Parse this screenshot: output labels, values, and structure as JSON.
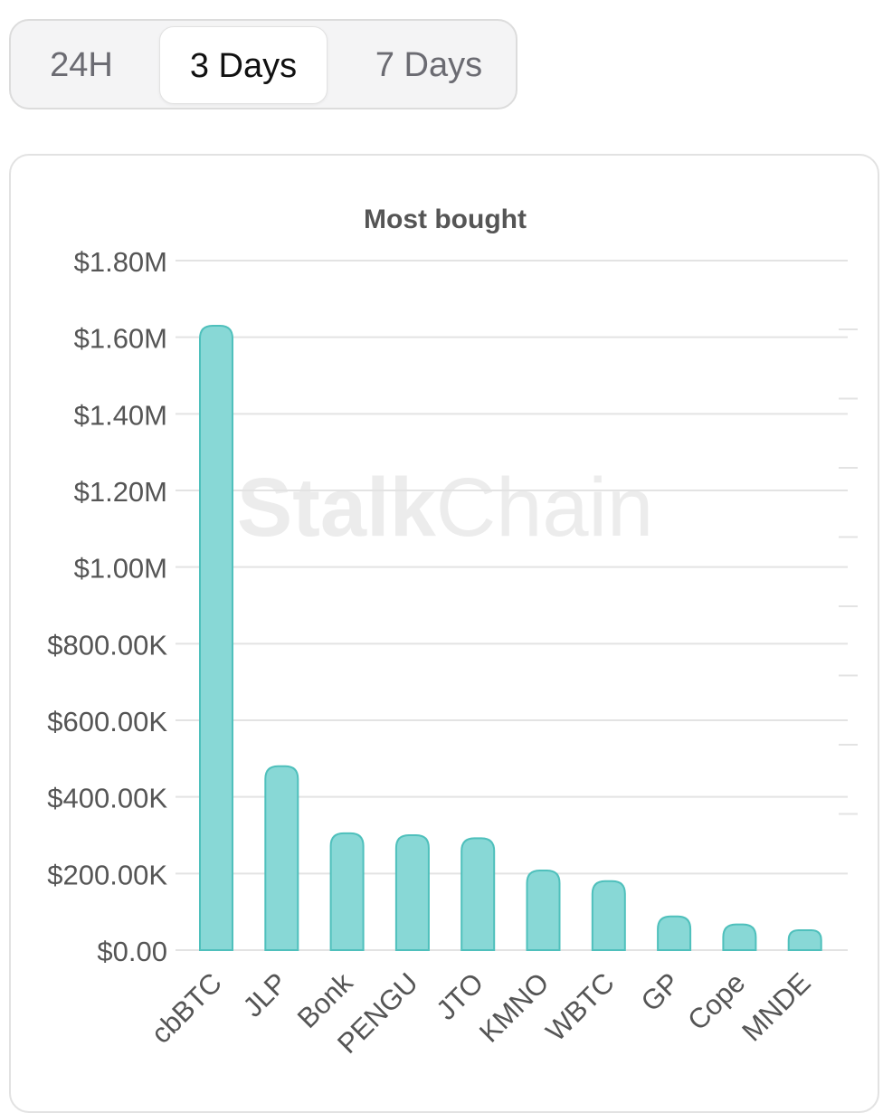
{
  "tabs": [
    {
      "label": "24H",
      "active": false
    },
    {
      "label": "3 Days",
      "active": true
    },
    {
      "label": "7 Days",
      "active": false
    }
  ],
  "watermark": {
    "bold": "Stalk",
    "light": "Chain"
  },
  "colors": {
    "bar_fill": "#88d8d6",
    "bar_stroke": "#4fc0bc",
    "grid": "#e3e3e3",
    "tick_text": "#555555",
    "title_text": "#555555",
    "watermark": "#ececec"
  },
  "chart_data": {
    "type": "bar",
    "title": "Most bought",
    "categories": [
      "cbBTC",
      "JLP",
      "Bonk",
      "PENGU",
      "JTO",
      "KMNO",
      "WBTC",
      "GP",
      "Cope",
      "MNDE"
    ],
    "values": [
      1630000,
      480000,
      305000,
      300000,
      292000,
      208000,
      180000,
      88000,
      67000,
      52000
    ],
    "ylim": [
      0,
      1800000
    ],
    "yticks": [
      0,
      200000,
      400000,
      600000,
      800000,
      1000000,
      1200000,
      1400000,
      1600000,
      1800000
    ],
    "ytick_labels": [
      "$0.00",
      "$200.00K",
      "$400.00K",
      "$600.00K",
      "$800.00K",
      "$1.00M",
      "$1.20M",
      "$1.40M",
      "$1.60M",
      "$1.80M"
    ],
    "xlabel": "",
    "ylabel": "",
    "grid": true,
    "legend": "none"
  }
}
